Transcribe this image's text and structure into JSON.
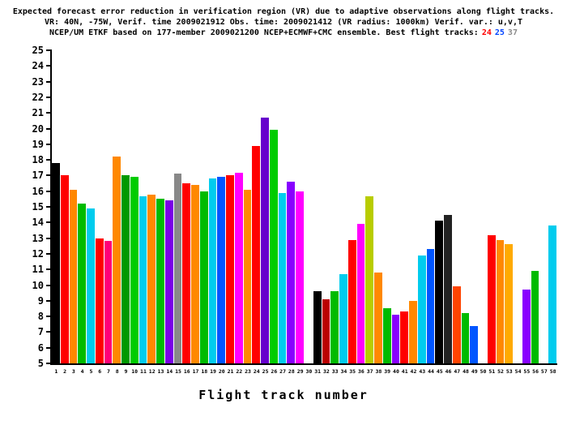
{
  "title": {
    "line1": "Expected forecast error reduction in verification region (VR) due to adaptive observations along flight tracks.",
    "line2": "VR: 40N, -75W, Verif. time 2009021912 Obs. time: 2009021412 (VR radius: 1000km)  Verif. var.: u,v,T",
    "line3": "NCEP/UM ETKF based on 177-member 2009021200 NCEP+ECMWF+CMC ensemble. Best flight tracks:",
    "best_tracks": [
      {
        "label": "24",
        "color": "#ff0000"
      },
      {
        "label": "25",
        "color": "#0044ff"
      },
      {
        "label": "37",
        "color": "#8a8a8a"
      }
    ]
  },
  "chart_data": {
    "type": "bar",
    "xlabel": "Flight track number",
    "ylabel": "",
    "ylim": [
      5,
      25
    ],
    "ytick_step": 1,
    "grid": false,
    "legend_position": "none",
    "categories": [
      "1",
      "2",
      "3",
      "4",
      "5",
      "6",
      "7",
      "8",
      "9",
      "10",
      "11",
      "12",
      "13",
      "14",
      "15",
      "16",
      "17",
      "18",
      "19",
      "20",
      "21",
      "22",
      "23",
      "24",
      "25",
      "26",
      "27",
      "28",
      "29",
      "30",
      "31",
      "32",
      "33",
      "34",
      "35",
      "36",
      "37",
      "38",
      "39",
      "40",
      "41",
      "42",
      "43",
      "44",
      "45",
      "46",
      "47",
      "48",
      "49",
      "50",
      "51",
      "52",
      "53",
      "54",
      "55",
      "56",
      "57",
      "58"
    ],
    "values": [
      17.8,
      17.0,
      16.1,
      15.2,
      14.9,
      13.0,
      12.8,
      18.2,
      17.0,
      16.9,
      15.7,
      15.8,
      15.5,
      15.4,
      17.1,
      16.5,
      16.4,
      16.0,
      16.8,
      16.9,
      17.0,
      17.2,
      16.1,
      18.9,
      20.7,
      19.9,
      15.9,
      16.6,
      16.0,
      null,
      9.6,
      9.1,
      9.6,
      10.7,
      12.9,
      13.9,
      15.7,
      10.8,
      8.5,
      8.1,
      8.3,
      9.0,
      11.9,
      12.3,
      14.1,
      14.5,
      9.9,
      8.2,
      7.4,
      null,
      13.2,
      12.9,
      12.6,
      null,
      9.7,
      10.9,
      null,
      13.8
    ],
    "colors": [
      "#000000",
      "#ff0000",
      "#ff8800",
      "#00bb00",
      "#00ccee",
      "#ff0000",
      "#ff0077",
      "#ff8800",
      "#009900",
      "#00cc00",
      "#00ccee",
      "#ff8800",
      "#00bb00",
      "#7a00e6",
      "#888888",
      "#ff0000",
      "#ff8800",
      "#00bb00",
      "#00ccee",
      "#0055ff",
      "#ff0000",
      "#ff00ff",
      "#ff8800",
      "#ff0000",
      "#6600cc",
      "#00cc00",
      "#00ccee",
      "#8800ff",
      "#ff00ff",
      "",
      "#000000",
      "#bb0000",
      "#00bb00",
      "#00ccee",
      "#ff0000",
      "#ff00ff",
      "#b8cc00",
      "#ff8800",
      "#00bb00",
      "#8800ff",
      "#ff0000",
      "#ff8800",
      "#00ccee",
      "#0055ff",
      "#000000",
      "#222222",
      "#ff4400",
      "#00bb00",
      "#0055ff",
      "",
      "#ff0000",
      "#ff8800",
      "#ffaa00",
      "",
      "#8800ff",
      "#00bb00",
      "",
      "#00ccee"
    ]
  }
}
